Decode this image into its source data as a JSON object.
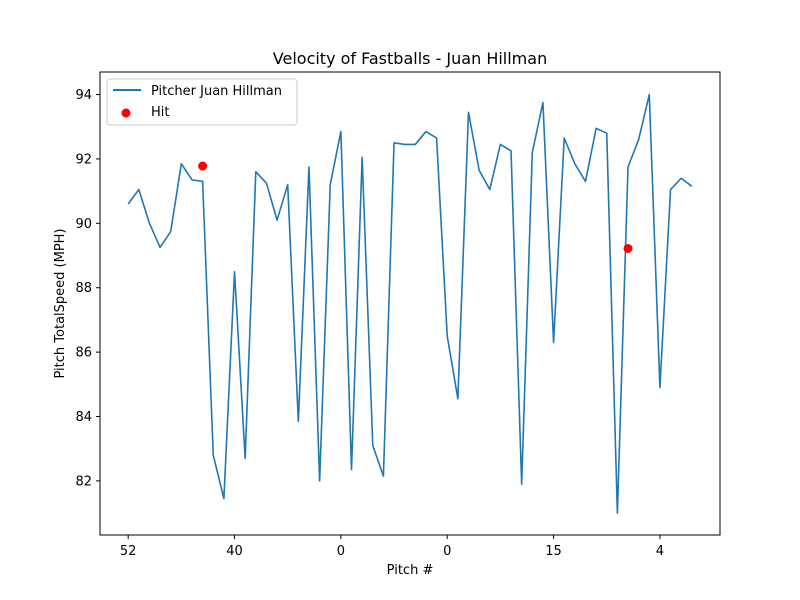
{
  "chart_data": {
    "type": "line",
    "title": "Velocity of Fastballs - Juan Hillman",
    "xlabel": "Pitch #",
    "ylabel": "Pitch TotalSpeed (MPH)",
    "ylim": [
      80.32,
      94.7
    ],
    "y_ticks": [
      82,
      84,
      86,
      88,
      90,
      92,
      94
    ],
    "x_ticks": [
      {
        "index": 0,
        "label": "52"
      },
      {
        "index": 10,
        "label": "40"
      },
      {
        "index": 20,
        "label": "0"
      },
      {
        "index": 30,
        "label": "0"
      },
      {
        "index": 40,
        "label": "15"
      },
      {
        "index": 50,
        "label": "4"
      }
    ],
    "grid": false,
    "legend_position": "upper left",
    "series": [
      {
        "name": "Pitcher Juan Hillman",
        "kind": "line",
        "color": "#1f77b4",
        "x": [
          0,
          1,
          2,
          3,
          4,
          5,
          6,
          7,
          8,
          9,
          10,
          11,
          12,
          13,
          14,
          15,
          16,
          17,
          18,
          19,
          20,
          21,
          22,
          23,
          24,
          25,
          26,
          27,
          28,
          29,
          30,
          31,
          32,
          33,
          34,
          35,
          36,
          37,
          38,
          39,
          40,
          41,
          42,
          43,
          44,
          45,
          46,
          47,
          48,
          49,
          50,
          51,
          52,
          53
        ],
        "values": [
          90.6,
          91.05,
          90.0,
          89.25,
          89.75,
          91.85,
          91.35,
          91.3,
          82.8,
          81.45,
          88.5,
          82.7,
          91.6,
          91.25,
          90.1,
          91.2,
          83.85,
          91.75,
          82.0,
          91.2,
          92.85,
          82.35,
          92.05,
          83.1,
          82.15,
          92.5,
          92.45,
          92.45,
          92.85,
          92.65,
          86.5,
          84.55,
          93.45,
          91.65,
          91.05,
          92.45,
          92.25,
          81.9,
          92.2,
          93.75,
          86.3,
          92.65,
          91.85,
          91.3,
          92.95,
          92.8,
          81.0,
          91.75,
          92.6,
          94.0,
          84.9,
          91.05,
          91.4,
          91.15
        ]
      },
      {
        "name": "Hit",
        "kind": "scatter",
        "color": "#ff0000",
        "x": [
          7.0,
          47.0
        ],
        "values": [
          91.78,
          89.22
        ]
      }
    ]
  }
}
